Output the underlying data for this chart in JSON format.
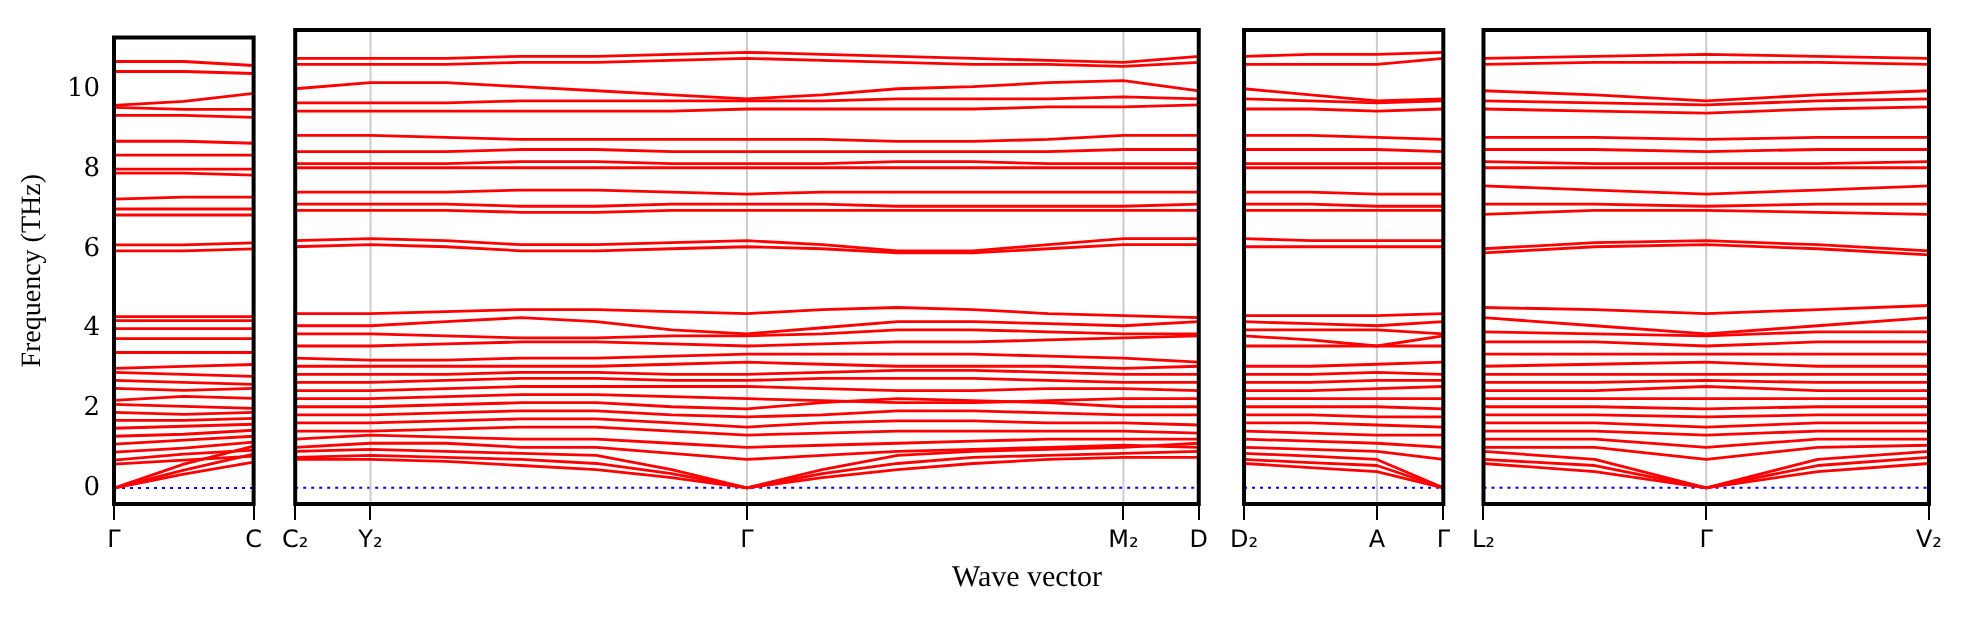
{
  "chart_data": [
    {
      "type": "line",
      "ylabel": "Frequency (THz)",
      "categories": [
        "Γ",
        null,
        "C"
      ],
      "ylim": [
        -0.4,
        11.3
      ],
      "yticks": [
        0,
        2,
        4,
        6,
        8,
        10
      ],
      "marker": "none",
      "line_style": "solid",
      "ref_lines": [
        {
          "axis": "y",
          "value": 0,
          "color": "#0000ff",
          "line_style": "dotted"
        }
      ],
      "series": [
        {
          "color": "#ff0000",
          "values": [
            0,
            0.35,
            0.65
          ]
        },
        {
          "color": "#ff0000",
          "values": [
            0,
            0.45,
            0.85
          ]
        },
        {
          "color": "#ff0000",
          "values": [
            0,
            0.6,
            1.05
          ]
        },
        {
          "color": "#ff0000",
          "values": [
            0.6,
            0.7,
            0.8
          ]
        },
        {
          "color": "#ff0000",
          "values": [
            0.7,
            0.85,
            0.95
          ]
        },
        {
          "color": "#ff0000",
          "values": [
            0.9,
            1.0,
            1.15
          ]
        },
        {
          "color": "#ff0000",
          "values": [
            1.1,
            1.2,
            1.3
          ]
        },
        {
          "color": "#ff0000",
          "values": [
            1.3,
            1.35,
            1.45
          ]
        },
        {
          "color": "#ff0000",
          "values": [
            1.5,
            1.55,
            1.6
          ]
        },
        {
          "color": "#ff0000",
          "values": [
            1.7,
            1.7,
            1.75
          ]
        },
        {
          "color": "#ff0000",
          "values": [
            1.9,
            1.85,
            1.9
          ]
        },
        {
          "color": "#ff0000",
          "values": [
            2.1,
            2.05,
            2.0
          ]
        },
        {
          "color": "#ff0000",
          "values": [
            2.2,
            2.3,
            2.25
          ]
        },
        {
          "color": "#ff0000",
          "values": [
            2.5,
            2.45,
            2.5
          ]
        },
        {
          "color": "#ff0000",
          "values": [
            2.7,
            2.65,
            2.6
          ]
        },
        {
          "color": "#ff0000",
          "values": [
            2.9,
            2.85,
            2.8
          ]
        },
        {
          "color": "#ff0000",
          "values": [
            3.0,
            3.05,
            3.1
          ]
        },
        {
          "color": "#ff0000",
          "values": [
            3.4,
            3.4,
            3.4
          ]
        },
        {
          "color": "#ff0000",
          "values": [
            3.75,
            3.75,
            3.75
          ]
        },
        {
          "color": "#ff0000",
          "values": [
            4.0,
            4.0,
            4.0
          ]
        },
        {
          "color": "#ff0000",
          "values": [
            4.2,
            4.2,
            4.2
          ]
        },
        {
          "color": "#ff0000",
          "values": [
            4.3,
            4.3,
            4.3
          ]
        },
        {
          "color": "#ff0000",
          "values": [
            5.95,
            5.95,
            6.0
          ]
        },
        {
          "color": "#ff0000",
          "values": [
            6.1,
            6.1,
            6.15
          ]
        },
        {
          "color": "#ff0000",
          "values": [
            6.85,
            6.85,
            6.85
          ]
        },
        {
          "color": "#ff0000",
          "values": [
            7.0,
            7.0,
            7.0
          ]
        },
        {
          "color": "#ff0000",
          "values": [
            7.25,
            7.3,
            7.3
          ]
        },
        {
          "color": "#ff0000",
          "values": [
            7.9,
            7.9,
            7.85
          ]
        },
        {
          "color": "#ff0000",
          "values": [
            8.0,
            8.0,
            8.0
          ]
        },
        {
          "color": "#ff0000",
          "values": [
            8.35,
            8.35,
            8.35
          ]
        },
        {
          "color": "#ff0000",
          "values": [
            8.7,
            8.7,
            8.65
          ]
        },
        {
          "color": "#ff0000",
          "values": [
            9.35,
            9.35,
            9.3
          ]
        },
        {
          "color": "#ff0000",
          "values": [
            9.55,
            9.5,
            9.5
          ]
        },
        {
          "color": "#ff0000",
          "values": [
            9.6,
            9.7,
            9.9
          ]
        },
        {
          "color": "#ff0000",
          "values": [
            10.45,
            10.45,
            10.4
          ]
        },
        {
          "color": "#ff0000",
          "values": [
            10.7,
            10.7,
            10.6
          ]
        }
      ]
    },
    {
      "type": "line",
      "xlabel": "Wave vector",
      "categories": [
        "C₂",
        "Y₂",
        null,
        null,
        null,
        null,
        "Γ",
        null,
        null,
        null,
        null,
        "M₂",
        "D"
      ],
      "ylim": [
        -0.4,
        11.3
      ],
      "yticks": [
        0,
        2,
        4,
        6,
        8,
        10
      ],
      "tick_labels": "x",
      "marker": "none",
      "line_style": "solid",
      "ref_lines": [
        {
          "axis": "y",
          "value": 0,
          "color": "#0000ff",
          "line_style": "dotted"
        },
        {
          "axis": "x",
          "value": "Y₂",
          "color": "#cccccc",
          "line_style": "solid"
        },
        {
          "axis": "x",
          "value": "Γ",
          "color": "#cccccc",
          "line_style": "solid"
        },
        {
          "axis": "x",
          "value": "M₂",
          "color": "#cccccc",
          "line_style": "solid"
        }
      ],
      "series": [
        {
          "color": "#ff0000",
          "values": [
            0.7,
            0.7,
            0.65,
            0.55,
            0.45,
            0.25,
            0,
            0.25,
            0.45,
            0.6,
            0.7,
            0.75,
            0.75
          ]
        },
        {
          "color": "#ff0000",
          "values": [
            0.75,
            0.8,
            0.75,
            0.7,
            0.6,
            0.35,
            0,
            0.35,
            0.6,
            0.75,
            0.8,
            0.85,
            0.9
          ]
        },
        {
          "color": "#ff0000",
          "values": [
            0.9,
            0.95,
            0.9,
            0.85,
            0.8,
            0.45,
            0,
            0.45,
            0.8,
            0.9,
            0.95,
            1.0,
            1.1
          ]
        },
        {
          "color": "#ff0000",
          "values": [
            1.0,
            1.1,
            1.1,
            1.0,
            1.0,
            0.85,
            0.7,
            0.8,
            0.9,
            0.95,
            1.0,
            1.05,
            1.0
          ]
        },
        {
          "color": "#ff0000",
          "values": [
            1.2,
            1.3,
            1.25,
            1.2,
            1.2,
            1.1,
            1.0,
            1.05,
            1.1,
            1.15,
            1.2,
            1.2,
            1.2
          ]
        },
        {
          "color": "#ff0000",
          "values": [
            1.4,
            1.4,
            1.45,
            1.5,
            1.5,
            1.4,
            1.3,
            1.35,
            1.4,
            1.4,
            1.4,
            1.4,
            1.35
          ]
        },
        {
          "color": "#ff0000",
          "values": [
            1.6,
            1.6,
            1.65,
            1.7,
            1.7,
            1.6,
            1.5,
            1.6,
            1.65,
            1.65,
            1.6,
            1.6,
            1.55
          ]
        },
        {
          "color": "#ff0000",
          "values": [
            1.8,
            1.8,
            1.85,
            1.9,
            1.9,
            1.8,
            1.75,
            1.8,
            1.9,
            1.9,
            1.85,
            1.8,
            1.8
          ]
        },
        {
          "color": "#ff0000",
          "values": [
            2.0,
            2.0,
            2.05,
            2.1,
            2.1,
            2.0,
            1.95,
            2.1,
            2.2,
            2.15,
            2.1,
            2.0,
            2.0
          ]
        },
        {
          "color": "#ff0000",
          "values": [
            2.2,
            2.2,
            2.25,
            2.3,
            2.3,
            2.25,
            2.2,
            2.15,
            2.1,
            2.1,
            2.15,
            2.2,
            2.2
          ]
        },
        {
          "color": "#ff0000",
          "values": [
            2.4,
            2.4,
            2.45,
            2.5,
            2.5,
            2.5,
            2.5,
            2.45,
            2.4,
            2.4,
            2.45,
            2.45,
            2.4
          ]
        },
        {
          "color": "#ff0000",
          "values": [
            2.6,
            2.6,
            2.65,
            2.7,
            2.7,
            2.65,
            2.65,
            2.7,
            2.7,
            2.7,
            2.65,
            2.6,
            2.6
          ]
        },
        {
          "color": "#ff0000",
          "values": [
            2.8,
            2.8,
            2.8,
            2.85,
            2.85,
            2.8,
            2.8,
            2.85,
            2.9,
            2.9,
            2.85,
            2.8,
            2.8
          ]
        },
        {
          "color": "#ff0000",
          "values": [
            3.0,
            3.0,
            3.0,
            3.0,
            3.0,
            3.05,
            3.1,
            3.05,
            3.0,
            3.0,
            3.0,
            2.95,
            3.0
          ]
        },
        {
          "color": "#ff0000",
          "values": [
            3.2,
            3.15,
            3.15,
            3.2,
            3.2,
            3.25,
            3.3,
            3.3,
            3.3,
            3.3,
            3.25,
            3.2,
            3.1
          ]
        },
        {
          "color": "#ff0000",
          "values": [
            3.5,
            3.5,
            3.55,
            3.6,
            3.6,
            3.55,
            3.5,
            3.55,
            3.6,
            3.6,
            3.65,
            3.7,
            3.75
          ]
        },
        {
          "color": "#ff0000",
          "values": [
            3.8,
            3.8,
            3.75,
            3.7,
            3.7,
            3.75,
            3.75,
            3.8,
            3.9,
            3.9,
            3.85,
            3.8,
            3.8
          ]
        },
        {
          "color": "#ff0000",
          "values": [
            4.0,
            4.0,
            4.1,
            4.2,
            4.1,
            3.9,
            3.8,
            3.95,
            4.1,
            4.1,
            4.05,
            4.0,
            4.1
          ]
        },
        {
          "color": "#ff0000",
          "values": [
            4.3,
            4.3,
            4.35,
            4.4,
            4.4,
            4.35,
            4.3,
            4.4,
            4.45,
            4.4,
            4.3,
            4.25,
            4.2
          ]
        },
        {
          "color": "#ff0000",
          "values": [
            5.95,
            6.0,
            5.95,
            5.85,
            5.85,
            5.9,
            5.95,
            5.9,
            5.8,
            5.8,
            5.9,
            6.0,
            6.0
          ]
        },
        {
          "color": "#ff0000",
          "values": [
            6.1,
            6.15,
            6.1,
            6.0,
            6.0,
            6.05,
            6.1,
            6.0,
            5.85,
            5.85,
            6.0,
            6.15,
            6.15
          ]
        },
        {
          "color": "#ff0000",
          "values": [
            6.85,
            6.85,
            6.85,
            6.8,
            6.8,
            6.85,
            6.85,
            6.85,
            6.85,
            6.85,
            6.85,
            6.85,
            6.85
          ]
        },
        {
          "color": "#ff0000",
          "values": [
            7.0,
            7.0,
            7.0,
            6.95,
            6.95,
            7.0,
            7.0,
            7.0,
            6.95,
            6.95,
            6.95,
            6.95,
            7.0
          ]
        },
        {
          "color": "#ff0000",
          "values": [
            7.3,
            7.3,
            7.3,
            7.35,
            7.35,
            7.3,
            7.25,
            7.3,
            7.3,
            7.3,
            7.3,
            7.3,
            7.3
          ]
        },
        {
          "color": "#ff0000",
          "values": [
            7.9,
            7.9,
            7.9,
            7.9,
            7.9,
            7.9,
            7.9,
            7.9,
            7.9,
            7.9,
            7.9,
            7.9,
            7.9
          ]
        },
        {
          "color": "#ff0000",
          "values": [
            8.0,
            8.0,
            8.0,
            8.05,
            8.05,
            8.0,
            8.0,
            8.0,
            8.05,
            8.05,
            8.0,
            8.0,
            8.0
          ]
        },
        {
          "color": "#ff0000",
          "values": [
            8.3,
            8.3,
            8.3,
            8.35,
            8.35,
            8.3,
            8.3,
            8.3,
            8.3,
            8.3,
            8.3,
            8.35,
            8.35
          ]
        },
        {
          "color": "#ff0000",
          "values": [
            8.7,
            8.7,
            8.65,
            8.6,
            8.6,
            8.6,
            8.6,
            8.6,
            8.55,
            8.55,
            8.6,
            8.7,
            8.7
          ]
        },
        {
          "color": "#ff0000",
          "values": [
            9.3,
            9.3,
            9.3,
            9.3,
            9.3,
            9.3,
            9.35,
            9.35,
            9.35,
            9.35,
            9.4,
            9.4,
            9.45
          ]
        },
        {
          "color": "#ff0000",
          "values": [
            9.5,
            9.5,
            9.5,
            9.55,
            9.55,
            9.55,
            9.55,
            9.55,
            9.6,
            9.6,
            9.6,
            9.65,
            9.6
          ]
        },
        {
          "color": "#ff0000",
          "values": [
            9.85,
            10.0,
            10.0,
            9.9,
            9.8,
            9.7,
            9.6,
            9.7,
            9.85,
            9.9,
            10.0,
            10.05,
            9.8
          ]
        },
        {
          "color": "#ff0000",
          "values": [
            10.45,
            10.45,
            10.45,
            10.5,
            10.5,
            10.55,
            10.6,
            10.55,
            10.5,
            10.45,
            10.45,
            10.4,
            10.5
          ]
        },
        {
          "color": "#ff0000",
          "values": [
            10.6,
            10.6,
            10.6,
            10.65,
            10.65,
            10.7,
            10.75,
            10.7,
            10.65,
            10.6,
            10.55,
            10.5,
            10.65
          ]
        }
      ]
    },
    {
      "type": "line",
      "categories": [
        "D₂",
        null,
        "A",
        "Γ"
      ],
      "ylim": [
        -0.4,
        11.3
      ],
      "yticks": [
        0,
        2,
        4,
        6,
        8,
        10
      ],
      "tick_labels": "x",
      "marker": "none",
      "line_style": "solid",
      "ref_lines": [
        {
          "axis": "y",
          "value": 0,
          "color": "#0000ff",
          "line_style": "dotted"
        },
        {
          "axis": "x",
          "value": "A",
          "color": "#cccccc",
          "line_style": "solid"
        }
      ],
      "series": [
        {
          "color": "#ff0000",
          "values": [
            0.6,
            0.5,
            0.4,
            0
          ]
        },
        {
          "color": "#ff0000",
          "values": [
            0.7,
            0.62,
            0.55,
            0
          ]
        },
        {
          "color": "#ff0000",
          "values": [
            0.85,
            0.78,
            0.7,
            0
          ]
        },
        {
          "color": "#ff0000",
          "values": [
            1.0,
            0.95,
            0.9,
            0.7
          ]
        },
        {
          "color": "#ff0000",
          "values": [
            1.2,
            1.15,
            1.1,
            1.0
          ]
        },
        {
          "color": "#ff0000",
          "values": [
            1.4,
            1.35,
            1.3,
            1.3
          ]
        },
        {
          "color": "#ff0000",
          "values": [
            1.6,
            1.6,
            1.55,
            1.5
          ]
        },
        {
          "color": "#ff0000",
          "values": [
            1.8,
            1.8,
            1.75,
            1.75
          ]
        },
        {
          "color": "#ff0000",
          "values": [
            2.0,
            2.0,
            2.0,
            1.95
          ]
        },
        {
          "color": "#ff0000",
          "values": [
            2.2,
            2.2,
            2.2,
            2.2
          ]
        },
        {
          "color": "#ff0000",
          "values": [
            2.4,
            2.4,
            2.45,
            2.5
          ]
        },
        {
          "color": "#ff0000",
          "values": [
            2.6,
            2.6,
            2.65,
            2.65
          ]
        },
        {
          "color": "#ff0000",
          "values": [
            2.8,
            2.8,
            2.85,
            2.8
          ]
        },
        {
          "color": "#ff0000",
          "values": [
            3.0,
            3.0,
            3.05,
            3.1
          ]
        },
        {
          "color": "#ff0000",
          "values": [
            3.5,
            3.5,
            3.5,
            3.5
          ]
        },
        {
          "color": "#ff0000",
          "values": [
            3.75,
            3.65,
            3.5,
            3.75
          ]
        },
        {
          "color": "#ff0000",
          "values": [
            3.9,
            3.9,
            3.9,
            3.8
          ]
        },
        {
          "color": "#ff0000",
          "values": [
            4.1,
            4.05,
            4.0,
            4.1
          ]
        },
        {
          "color": "#ff0000",
          "values": [
            4.25,
            4.25,
            4.25,
            4.3
          ]
        },
        {
          "color": "#ff0000",
          "values": [
            5.95,
            5.95,
            5.95,
            5.95
          ]
        },
        {
          "color": "#ff0000",
          "values": [
            6.15,
            6.1,
            6.1,
            6.1
          ]
        },
        {
          "color": "#ff0000",
          "values": [
            6.85,
            6.85,
            6.85,
            6.85
          ]
        },
        {
          "color": "#ff0000",
          "values": [
            7.0,
            7.0,
            6.95,
            6.95
          ]
        },
        {
          "color": "#ff0000",
          "values": [
            7.3,
            7.3,
            7.25,
            7.25
          ]
        },
        {
          "color": "#ff0000",
          "values": [
            7.9,
            7.9,
            7.9,
            7.9
          ]
        },
        {
          "color": "#ff0000",
          "values": [
            8.0,
            8.0,
            8.0,
            8.0
          ]
        },
        {
          "color": "#ff0000",
          "values": [
            8.35,
            8.35,
            8.35,
            8.3
          ]
        },
        {
          "color": "#ff0000",
          "values": [
            8.7,
            8.7,
            8.65,
            8.6
          ]
        },
        {
          "color": "#ff0000",
          "values": [
            9.35,
            9.35,
            9.3,
            9.35
          ]
        },
        {
          "color": "#ff0000",
          "values": [
            9.6,
            9.55,
            9.5,
            9.55
          ]
        },
        {
          "color": "#ff0000",
          "values": [
            9.85,
            9.7,
            9.55,
            9.6
          ]
        },
        {
          "color": "#ff0000",
          "values": [
            10.45,
            10.45,
            10.45,
            10.6
          ]
        },
        {
          "color": "#ff0000",
          "values": [
            10.65,
            10.7,
            10.7,
            10.75
          ]
        }
      ]
    },
    {
      "type": "line",
      "categories": [
        "L₂",
        null,
        "Γ",
        null,
        "V₂"
      ],
      "ylim": [
        -0.4,
        11.3
      ],
      "yticks": [
        0,
        2,
        4,
        6,
        8,
        10
      ],
      "tick_labels": "x",
      "marker": "none",
      "line_style": "solid",
      "ref_lines": [
        {
          "axis": "y",
          "value": 0,
          "color": "#0000ff",
          "line_style": "dotted"
        },
        {
          "axis": "x",
          "value": "Γ",
          "color": "#cccccc",
          "line_style": "solid"
        }
      ],
      "series": [
        {
          "color": "#ff0000",
          "values": [
            0.6,
            0.4,
            0,
            0.4,
            0.6
          ]
        },
        {
          "color": "#ff0000",
          "values": [
            0.7,
            0.55,
            0,
            0.55,
            0.75
          ]
        },
        {
          "color": "#ff0000",
          "values": [
            0.9,
            0.7,
            0,
            0.7,
            0.9
          ]
        },
        {
          "color": "#ff0000",
          "values": [
            1.0,
            1.0,
            0.7,
            1.0,
            1.05
          ]
        },
        {
          "color": "#ff0000",
          "values": [
            1.2,
            1.2,
            1.0,
            1.2,
            1.2
          ]
        },
        {
          "color": "#ff0000",
          "values": [
            1.4,
            1.4,
            1.3,
            1.4,
            1.4
          ]
        },
        {
          "color": "#ff0000",
          "values": [
            1.6,
            1.6,
            1.5,
            1.6,
            1.6
          ]
        },
        {
          "color": "#ff0000",
          "values": [
            1.8,
            1.8,
            1.75,
            1.8,
            1.8
          ]
        },
        {
          "color": "#ff0000",
          "values": [
            2.0,
            2.0,
            1.95,
            2.0,
            2.0
          ]
        },
        {
          "color": "#ff0000",
          "values": [
            2.2,
            2.2,
            2.2,
            2.2,
            2.2
          ]
        },
        {
          "color": "#ff0000",
          "values": [
            2.4,
            2.4,
            2.5,
            2.4,
            2.4
          ]
        },
        {
          "color": "#ff0000",
          "values": [
            2.6,
            2.6,
            2.65,
            2.6,
            2.6
          ]
        },
        {
          "color": "#ff0000",
          "values": [
            2.8,
            2.8,
            2.8,
            2.8,
            2.8
          ]
        },
        {
          "color": "#ff0000",
          "values": [
            3.0,
            3.05,
            3.1,
            3.0,
            3.0
          ]
        },
        {
          "color": "#ff0000",
          "values": [
            3.3,
            3.3,
            3.3,
            3.3,
            3.3
          ]
        },
        {
          "color": "#ff0000",
          "values": [
            3.6,
            3.6,
            3.5,
            3.6,
            3.6
          ]
        },
        {
          "color": "#ff0000",
          "values": [
            3.85,
            3.8,
            3.75,
            3.85,
            3.85
          ]
        },
        {
          "color": "#ff0000",
          "values": [
            4.2,
            4.0,
            3.8,
            4.0,
            4.2
          ]
        },
        {
          "color": "#ff0000",
          "values": [
            4.45,
            4.4,
            4.3,
            4.4,
            4.5
          ]
        },
        {
          "color": "#ff0000",
          "values": [
            5.8,
            5.95,
            6.0,
            5.9,
            5.75
          ]
        },
        {
          "color": "#ff0000",
          "values": [
            5.9,
            6.05,
            6.1,
            6.0,
            5.85
          ]
        },
        {
          "color": "#ff0000",
          "values": [
            6.75,
            6.85,
            6.85,
            6.8,
            6.75
          ]
        },
        {
          "color": "#ff0000",
          "values": [
            7.0,
            7.0,
            6.95,
            7.0,
            7.0
          ]
        },
        {
          "color": "#ff0000",
          "values": [
            7.45,
            7.35,
            7.25,
            7.35,
            7.45
          ]
        },
        {
          "color": "#ff0000",
          "values": [
            7.9,
            7.9,
            7.9,
            7.9,
            7.9
          ]
        },
        {
          "color": "#ff0000",
          "values": [
            8.05,
            8.0,
            8.0,
            8.0,
            8.05
          ]
        },
        {
          "color": "#ff0000",
          "values": [
            8.35,
            8.35,
            8.3,
            8.35,
            8.35
          ]
        },
        {
          "color": "#ff0000",
          "values": [
            8.65,
            8.65,
            8.6,
            8.65,
            8.65
          ]
        },
        {
          "color": "#ff0000",
          "values": [
            9.35,
            9.3,
            9.25,
            9.35,
            9.4
          ]
        },
        {
          "color": "#ff0000",
          "values": [
            9.55,
            9.5,
            9.45,
            9.55,
            9.6
          ]
        },
        {
          "color": "#ff0000",
          "values": [
            9.8,
            9.7,
            9.55,
            9.7,
            9.8
          ]
        },
        {
          "color": "#ff0000",
          "values": [
            10.45,
            10.5,
            10.5,
            10.5,
            10.45
          ]
        },
        {
          "color": "#ff0000",
          "values": [
            10.6,
            10.65,
            10.7,
            10.65,
            10.6
          ]
        }
      ]
    }
  ]
}
